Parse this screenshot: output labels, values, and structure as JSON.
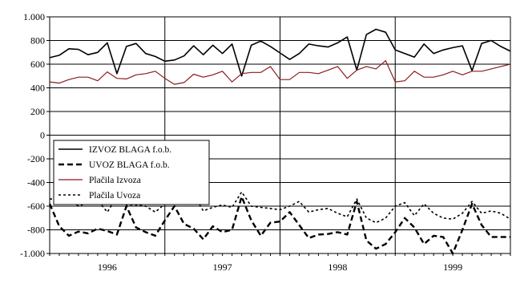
{
  "chart_data": {
    "type": "line",
    "title": "",
    "xlabel": "",
    "ylabel": "",
    "ylim": [
      -1000,
      1000
    ],
    "yticks": [
      -1000,
      -800,
      -600,
      -400,
      -200,
      0,
      200,
      400,
      600,
      800,
      1000
    ],
    "ytick_labels": [
      "-1.000",
      "-800",
      "-600",
      "-400",
      "-200",
      "0",
      "200",
      "400",
      "600",
      "800",
      "1.000"
    ],
    "x_periods": 48,
    "year_labels": [
      "1996",
      "1997",
      "1998",
      "1999"
    ],
    "year_dividers_after_months": [
      12,
      24,
      36
    ],
    "grid": "horizontal",
    "legend": {
      "placement": "center-left"
    },
    "series": [
      {
        "name": "IZVOZ BLAGA f.o.b.",
        "style": "solid",
        "color": "#000000",
        "width": 1.6,
        "values": [
          655,
          675,
          730,
          725,
          680,
          700,
          780,
          520,
          750,
          775,
          690,
          665,
          625,
          635,
          670,
          755,
          680,
          760,
          690,
          770,
          500,
          760,
          795,
          750,
          695,
          640,
          690,
          770,
          755,
          745,
          780,
          830,
          550,
          850,
          895,
          870,
          720,
          690,
          660,
          770,
          690,
          720,
          740,
          755,
          545,
          775,
          800,
          750,
          710
        ]
      },
      {
        "name": "UVOZ BLAGA f.o.b.",
        "style": "dashed",
        "color": "#000000",
        "width": 2.4,
        "values": [
          -580,
          -770,
          -850,
          -815,
          -830,
          -790,
          -810,
          -840,
          -600,
          -780,
          -820,
          -850,
          -720,
          -600,
          -750,
          -790,
          -880,
          -770,
          -820,
          -800,
          -520,
          -720,
          -850,
          -740,
          -730,
          -650,
          -760,
          -870,
          -840,
          -835,
          -820,
          -840,
          -560,
          -890,
          -960,
          -920,
          -820,
          -700,
          -780,
          -920,
          -850,
          -860,
          -1000,
          -800,
          -580,
          -760,
          -860,
          -860,
          -860
        ]
      },
      {
        "name": "Plačila Izvoza",
        "style": "solid",
        "color": "#8b1c1c",
        "width": 1.2,
        "values": [
          450,
          440,
          470,
          490,
          490,
          460,
          535,
          480,
          475,
          510,
          520,
          540,
          480,
          430,
          445,
          515,
          490,
          510,
          540,
          450,
          520,
          530,
          530,
          580,
          470,
          470,
          530,
          530,
          520,
          550,
          580,
          480,
          550,
          580,
          560,
          630,
          450,
          460,
          540,
          490,
          490,
          510,
          540,
          510,
          540,
          540,
          560,
          580,
          600
        ]
      },
      {
        "name": "Plačila Uvoza",
        "style": "dotted",
        "color": "#000000",
        "width": 1.6,
        "values": [
          -540,
          -540,
          -540,
          -600,
          -570,
          -550,
          -650,
          -520,
          -590,
          -590,
          -600,
          -650,
          -580,
          -540,
          -520,
          -500,
          -640,
          -610,
          -590,
          -610,
          -480,
          -600,
          -610,
          -620,
          -630,
          -600,
          -560,
          -650,
          -630,
          -620,
          -660,
          -690,
          -540,
          -700,
          -740,
          -700,
          -600,
          -570,
          -680,
          -580,
          -660,
          -700,
          -710,
          -660,
          -560,
          -660,
          -640,
          -660,
          -710
        ]
      }
    ]
  }
}
